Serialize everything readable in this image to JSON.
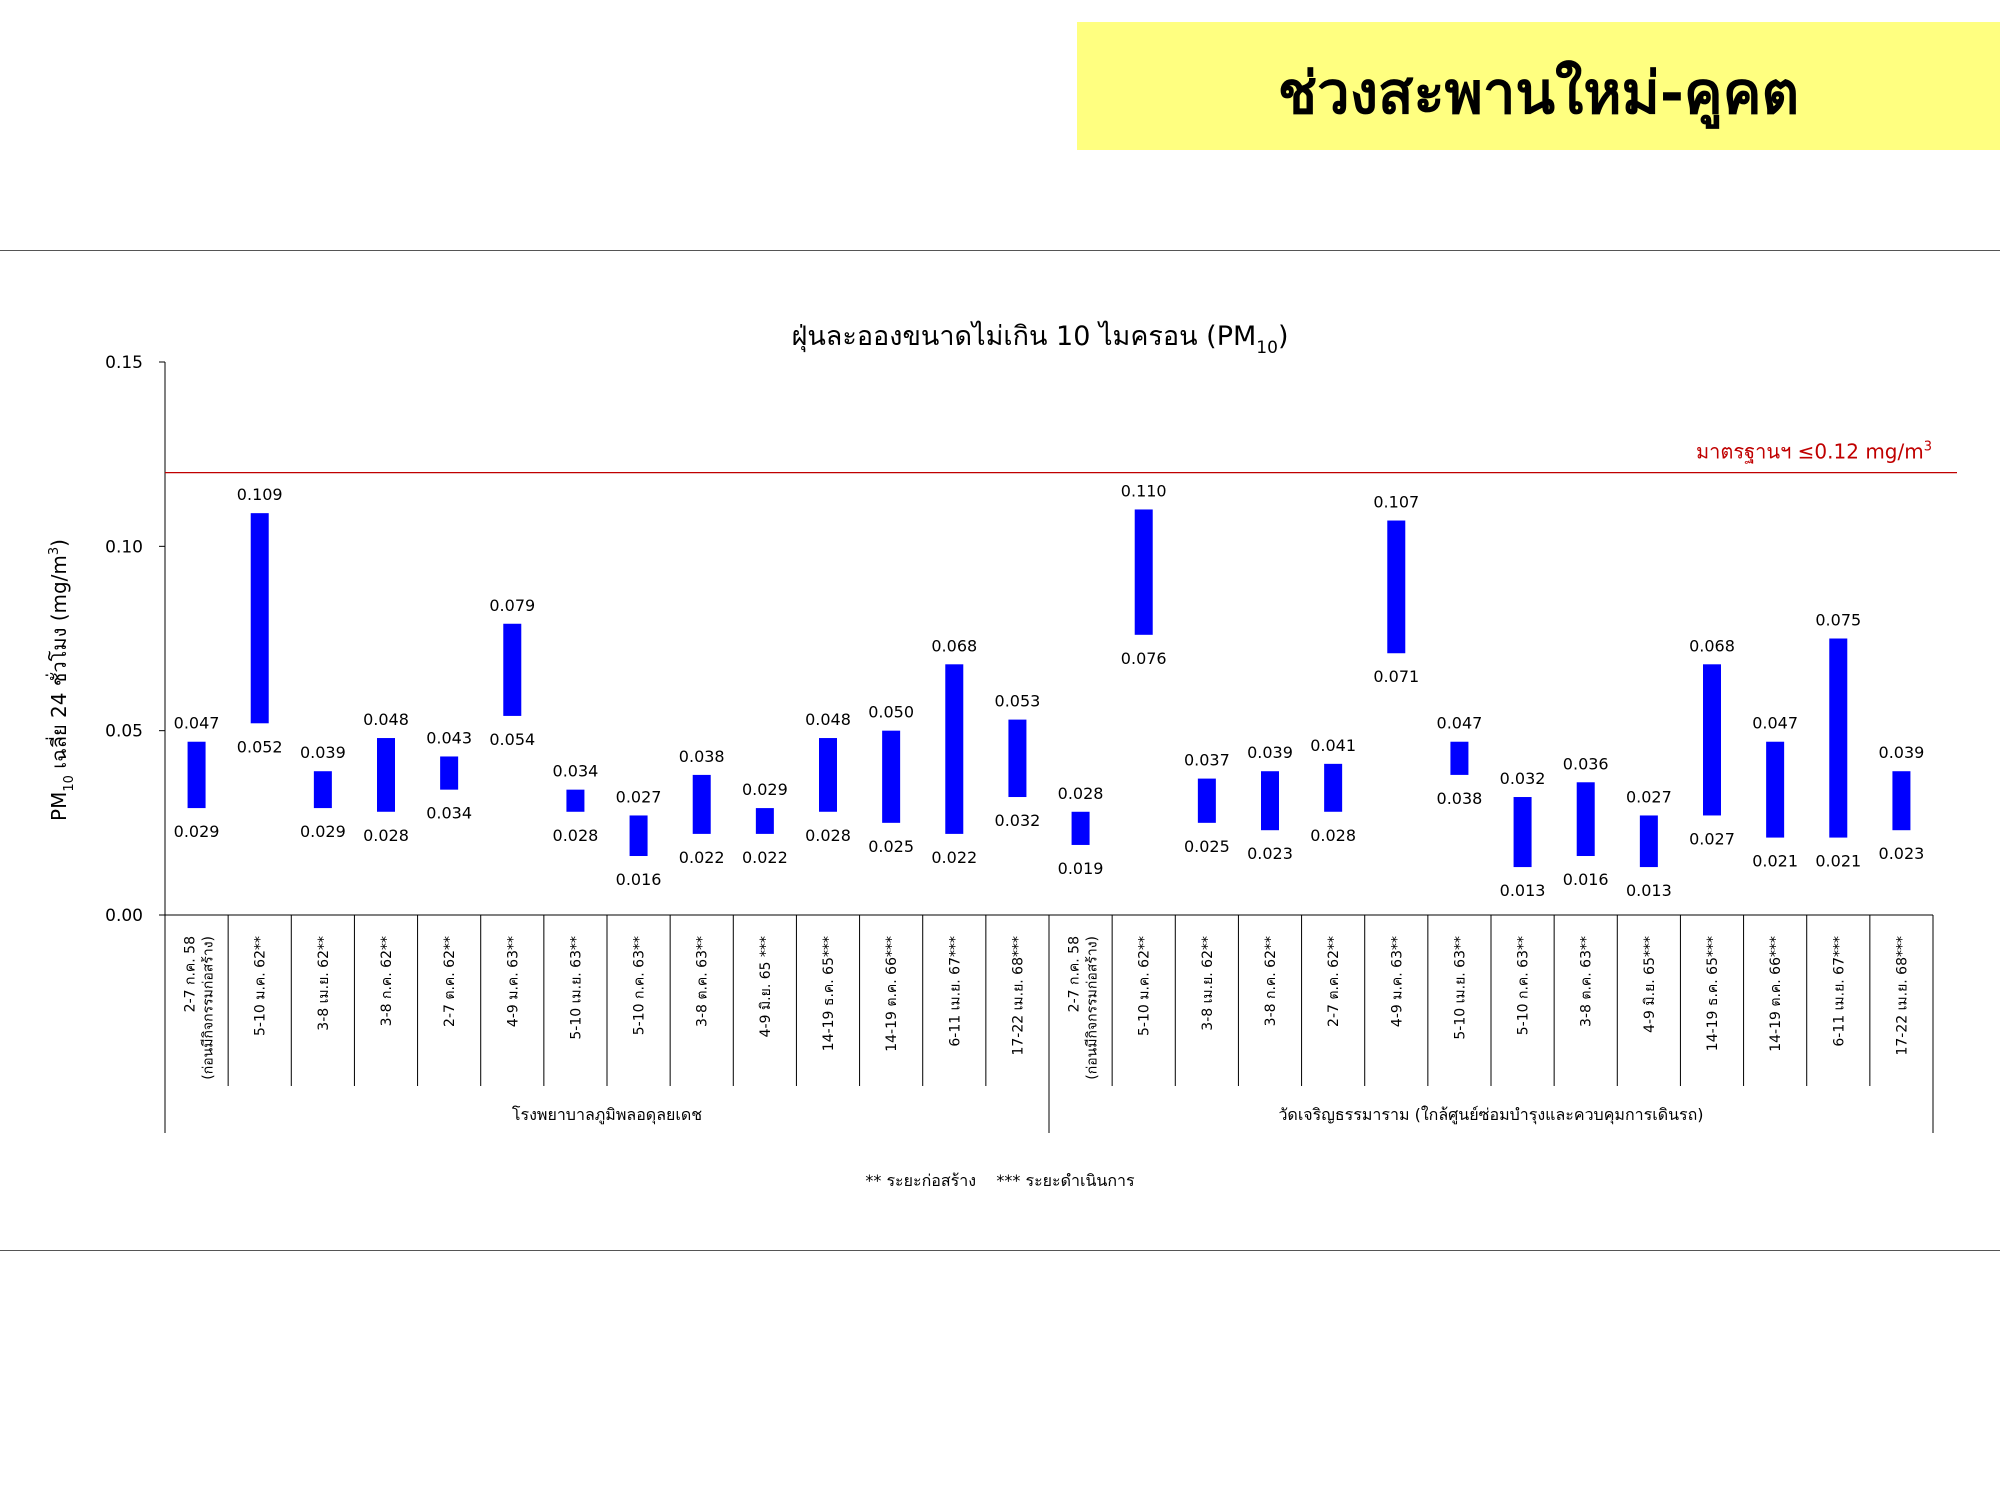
{
  "page_title": "ช่วงสะพานใหม่-คูคต",
  "chart_data": {
    "type": "bar",
    "subtype": "floating-range",
    "title": "ฝุ่นละอองขนาดไม่เกิน 10 ไมครอน (PM",
    "title_sub": "10",
    "title_end": ")",
    "ylabel_main": "PM",
    "ylabel_sub": "10",
    "ylabel_rest": " เฉลี่ย 24 ชั่วโมง (mg/m",
    "ylabel_sup": "3",
    "ylabel_end": ")",
    "ylim": [
      0,
      0.15
    ],
    "yticks": [
      "0.00",
      "0.05",
      "0.10",
      "0.15"
    ],
    "standard": {
      "value": 0.12,
      "label": "มาตรฐานฯ ≤0.12 mg/m",
      "label_sup": "3",
      "color": "#c00000"
    },
    "bar_color": "#0000ff",
    "groups": [
      {
        "name": "โรงพยาบาลภูมิพลอดุลยเดช",
        "categories": [
          {
            "l1": "2-7 ก.ค. 58",
            "l2": "(ก่อนมีกิจกรรมก่อสร้าง)",
            "max": 0.047,
            "min": 0.029,
            "max_label": "0.047",
            "min_label": "0.029"
          },
          {
            "l1": "5-10 ม.ค. 62**",
            "max": 0.109,
            "min": 0.052,
            "max_label": "0.109",
            "min_label": "0.052"
          },
          {
            "l1": "3-8 เม.ย. 62**",
            "max": 0.039,
            "min": 0.029,
            "max_label": "0.039",
            "min_label": "0.029"
          },
          {
            "l1": "3-8 ก.ค. 62**",
            "max": 0.048,
            "min": 0.028,
            "max_label": "0.048",
            "min_label": "0.028"
          },
          {
            "l1": "2-7 ต.ค. 62**",
            "max": 0.043,
            "min": 0.034,
            "max_label": "0.043",
            "min_label": "0.034"
          },
          {
            "l1": "4-9 ม.ค. 63**",
            "max": 0.079,
            "min": 0.054,
            "max_label": "0.079",
            "min_label": "0.054"
          },
          {
            "l1": "5-10 เม.ย. 63**",
            "max": 0.034,
            "min": 0.028,
            "max_label": "0.034",
            "min_label": "0.028"
          },
          {
            "l1": "5-10 ก.ค. 63**",
            "max": 0.027,
            "min": 0.016,
            "max_label": "0.027",
            "min_label": "0.016"
          },
          {
            "l1": "3-8 ต.ค. 63**",
            "max": 0.038,
            "min": 0.022,
            "max_label": "0.038",
            "min_label": "0.022"
          },
          {
            "l1": "4-9 มิ.ย. 65 ***",
            "max": 0.029,
            "min": 0.022,
            "max_label": "0.029",
            "min_label": "0.022"
          },
          {
            "l1": "14-19 ธ.ค. 65***",
            "max": 0.048,
            "min": 0.028,
            "max_label": "0.048",
            "min_label": "0.028"
          },
          {
            "l1": "14-19 ต.ค. 66***",
            "max": 0.05,
            "min": 0.025,
            "max_label": "0.050",
            "min_label": "0.025"
          },
          {
            "l1": "6-11 เม.ย. 67***",
            "max": 0.068,
            "min": 0.022,
            "max_label": "0.068",
            "min_label": "0.022"
          },
          {
            "l1": "17-22 เม.ย. 68***",
            "max": 0.053,
            "min": 0.032,
            "max_label": "0.053",
            "min_label": "0.032"
          }
        ]
      },
      {
        "name": "วัดเจริญธรรมาราม (ใกล้ศูนย์ซ่อมบำรุงและควบคุมการเดินรถ)",
        "categories": [
          {
            "l1": "2-7 ก.ค. 58",
            "l2": "(ก่อนมีกิจกรรมก่อสร้าง)",
            "max": 0.028,
            "min": 0.019,
            "max_label": "0.028",
            "min_label": "0.019"
          },
          {
            "l1": "5-10 ม.ค. 62**",
            "max": 0.11,
            "min": 0.076,
            "max_label": "0.110",
            "min_label": "0.076"
          },
          {
            "l1": "3-8 เม.ย. 62**",
            "max": 0.037,
            "min": 0.025,
            "max_label": "0.037",
            "min_label": "0.025"
          },
          {
            "l1": "3-8 ก.ค. 62**",
            "max": 0.039,
            "min": 0.023,
            "max_label": "0.039",
            "min_label": "0.023"
          },
          {
            "l1": "2-7 ต.ค. 62**",
            "max": 0.041,
            "min": 0.028,
            "max_label": "0.041",
            "min_label": "0.028"
          },
          {
            "l1": "4-9 ม.ค. 63**",
            "max": 0.107,
            "min": 0.071,
            "max_label": "0.107",
            "min_label": "0.071"
          },
          {
            "l1": "5-10 เม.ย. 63**",
            "max": 0.047,
            "min": 0.038,
            "max_label": "0.047",
            "min_label": "0.038"
          },
          {
            "l1": "5-10 ก.ค. 63**",
            "max": 0.032,
            "min": 0.013,
            "max_label": "0.032",
            "min_label": "0.013"
          },
          {
            "l1": "3-8 ต.ค. 63**",
            "max": 0.036,
            "min": 0.016,
            "max_label": "0.036",
            "min_label": "0.016"
          },
          {
            "l1": "4-9 มิ.ย. 65***",
            "max": 0.027,
            "min": 0.013,
            "max_label": "0.027",
            "min_label": "0.013"
          },
          {
            "l1": "14-19 ธ.ค. 65***",
            "max": 0.068,
            "min": 0.027,
            "max_label": "0.068",
            "min_label": "0.027"
          },
          {
            "l1": "14-19 ต.ค. 66***",
            "max": 0.047,
            "min": 0.021,
            "max_label": "0.047",
            "min_label": "0.021"
          },
          {
            "l1": "6-11 เม.ย. 67***",
            "max": 0.075,
            "min": 0.021,
            "max_label": "0.075",
            "min_label": "0.021"
          },
          {
            "l1": "17-22 เม.ย. 68***",
            "max": 0.039,
            "min": 0.023,
            "max_label": "0.039",
            "min_label": "0.023"
          }
        ]
      }
    ],
    "footnote": "** ระยะก่อสร้าง    *** ระยะดำเนินการ",
    "grid": false,
    "legend": "none"
  }
}
